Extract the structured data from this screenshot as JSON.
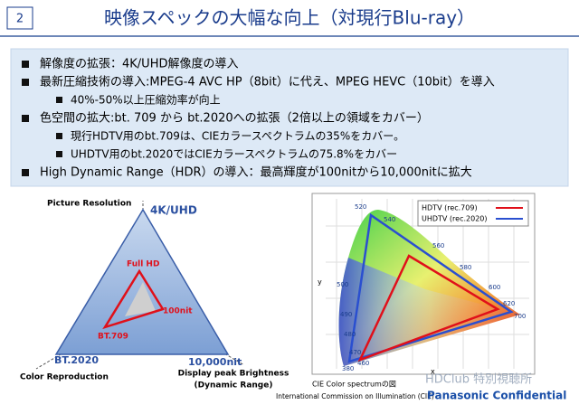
{
  "header": {
    "page_number": "2",
    "title": "映像スペックの大幅な向上（対現行Blu-ray）"
  },
  "bullets": [
    {
      "text": "解像度の拡張：4K/UHD解像度の導入",
      "sub": []
    },
    {
      "text": "最新圧縮技術の導入:MPEG-4 AVC HP（8bit）に代え、MPEG HEVC（10bit）を導入",
      "sub": [
        "40%-50%以上圧縮効率が向上"
      ]
    },
    {
      "text": "色空間の拡大:bt. 709 から bt.2020への拡張（2倍以上の領域をカバー）",
      "sub": [
        "現行HDTV用のbt.709は、CIEカラースペクトラムの35%をカバー。",
        "UHDTV用のbt.2020ではCIEカラースペクトラムの75.8%をカバー"
      ]
    },
    {
      "text": "High Dynamic Range（HDR）の導入：最高輝度が100nitから10,000nitに拡大",
      "sub": []
    }
  ],
  "radar": {
    "axis_top": "Picture Resolution",
    "axis_left": "Color Reproduction",
    "axis_right": [
      "Display peak Brightness",
      "(Dynamic Range)"
    ],
    "new_labels": [
      "4K/UHD",
      "BT.2020",
      "10,000nit"
    ],
    "old_labels": [
      "Full HD",
      "BT.709",
      "100nit"
    ]
  },
  "cie": {
    "legend": [
      "HDTV (rec.709)",
      "UHDTV (rec.2020)"
    ],
    "x_label": "x",
    "y_label": "y",
    "wavelengths": [
      "520",
      "540",
      "560",
      "580",
      "600",
      "620",
      "700",
      "500",
      "490",
      "480",
      "470",
      "460",
      "380"
    ],
    "caption": "CIE Color spectrumの図",
    "source": "International Commission on Illumination (CIE)"
  },
  "watermark": "HDClub 特別視聴所",
  "confidential": "Panasonic Confidential"
}
